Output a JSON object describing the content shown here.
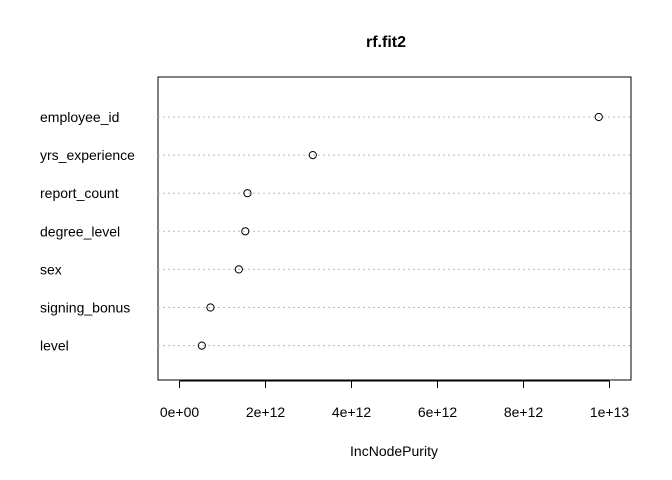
{
  "chart_data": {
    "type": "scatter",
    "title": "rf.fit2",
    "xlabel": "IncNodePurity",
    "ylabel": "",
    "xlim": [
      -500000000000,
      10500000000000
    ],
    "x_ticks": [
      0,
      2000000000000,
      4000000000000,
      6000000000000,
      8000000000000,
      10000000000000
    ],
    "x_tick_labels": [
      "0e+00",
      "2e+12",
      "4e+12",
      "6e+12",
      "8e+12",
      "1e+13"
    ],
    "grid": "dotted horizontal guides",
    "categories": [
      "employee_id",
      "yrs_experience",
      "report_count",
      "degree_level",
      "sex",
      "signing_bonus",
      "level"
    ],
    "values": [
      9750000000000,
      3100000000000,
      1580000000000,
      1530000000000,
      1380000000000,
      720000000000,
      520000000000
    ]
  }
}
